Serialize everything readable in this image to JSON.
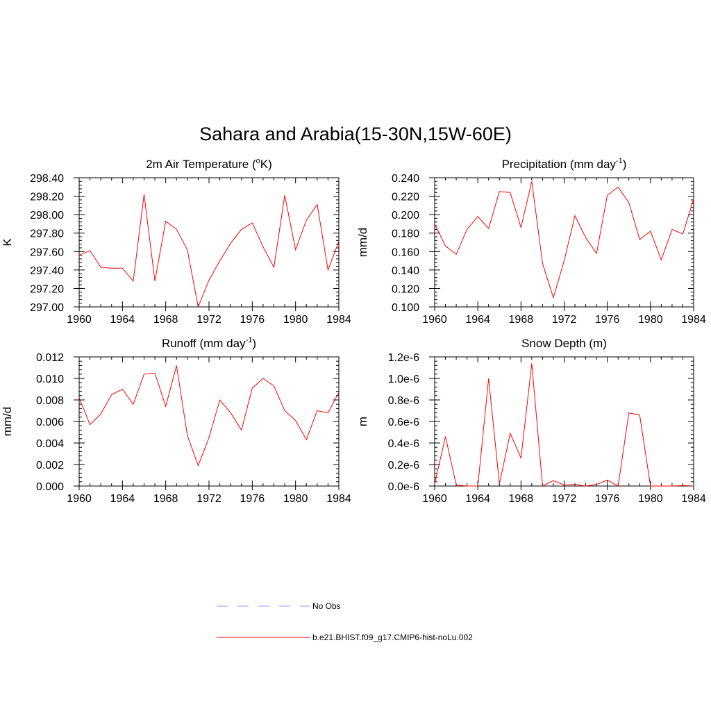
{
  "figure": {
    "title": "Sahara and Arabia(15-30N,15W-60E)"
  },
  "legend": {
    "entries": [
      {
        "label": "No Obs",
        "color": "#9999ff",
        "dash": true
      },
      {
        "label": "b.e21.BHIST.f09_g17.CMIP6-hist-noLu.002",
        "color": "#ff0000",
        "dash": false
      }
    ]
  },
  "colors": {
    "series": "#ff0000",
    "axis": "#000000"
  },
  "chart_data": [
    {
      "id": "temp",
      "type": "line",
      "title": "2m Air Temperature (",
      "title_sup": "o",
      "title_end": "K)",
      "ylabel": "K",
      "xlim": [
        1960,
        1984
      ],
      "ylim": [
        297.0,
        298.4
      ],
      "xticks": [
        1960,
        1964,
        1968,
        1972,
        1976,
        1980,
        1984
      ],
      "xtick_labels": [
        "1960",
        "1964",
        "1968",
        "1972",
        "1976",
        "1980",
        "1984"
      ],
      "yticks": [
        297.0,
        297.2,
        297.4,
        297.6,
        297.8,
        298.0,
        298.2,
        298.4
      ],
      "ytick_labels": [
        "297.00",
        "297.20",
        "297.40",
        "297.60",
        "297.80",
        "298.00",
        "298.20",
        "298.40"
      ],
      "x": [
        1960,
        1961,
        1962,
        1963,
        1964,
        1965,
        1966,
        1967,
        1968,
        1969,
        1970,
        1971,
        1972,
        1973,
        1974,
        1975,
        1976,
        1977,
        1978,
        1979,
        1980,
        1981,
        1982,
        1983,
        1984
      ],
      "series": [
        {
          "name": "b.e21.BHIST.f09_g17.CMIP6-hist-noLu.002",
          "values": [
            297.56,
            297.61,
            297.43,
            297.42,
            297.42,
            297.28,
            298.22,
            297.28,
            297.93,
            297.84,
            297.62,
            297.0,
            297.29,
            297.5,
            297.69,
            297.84,
            297.91,
            297.65,
            297.43,
            298.21,
            297.62,
            297.94,
            298.11,
            297.4,
            297.71
          ]
        }
      ]
    },
    {
      "id": "precip",
      "type": "line",
      "title": "Precipitation (mm day",
      "title_sup": "-1",
      "title_end": ")",
      "ylabel": "mm/d",
      "xlim": [
        1960,
        1984
      ],
      "ylim": [
        0.1,
        0.24
      ],
      "xticks": [
        1960,
        1964,
        1968,
        1972,
        1976,
        1980,
        1984
      ],
      "xtick_labels": [
        "1960",
        "1964",
        "1968",
        "1972",
        "1976",
        "1980",
        "1984"
      ],
      "yticks": [
        0.1,
        0.12,
        0.14,
        0.16,
        0.18,
        0.2,
        0.22,
        0.24
      ],
      "ytick_labels": [
        "0.100",
        "0.120",
        "0.140",
        "0.160",
        "0.180",
        "0.200",
        "0.220",
        "0.240"
      ],
      "x": [
        1960,
        1961,
        1962,
        1963,
        1964,
        1965,
        1966,
        1967,
        1968,
        1969,
        1970,
        1971,
        1972,
        1973,
        1974,
        1975,
        1976,
        1977,
        1978,
        1979,
        1980,
        1981,
        1982,
        1983,
        1984
      ],
      "series": [
        {
          "name": "b.e21.BHIST.f09_g17.CMIP6-hist-noLu.002",
          "values": [
            0.19,
            0.166,
            0.157,
            0.184,
            0.198,
            0.185,
            0.225,
            0.224,
            0.186,
            0.236,
            0.147,
            0.11,
            0.15,
            0.199,
            0.175,
            0.158,
            0.221,
            0.23,
            0.213,
            0.173,
            0.182,
            0.151,
            0.184,
            0.179,
            0.217
          ]
        }
      ]
    },
    {
      "id": "runoff",
      "type": "line",
      "title": "Runoff (mm day",
      "title_sup": "-1",
      "title_end": ")",
      "ylabel": "mm/d",
      "xlim": [
        1960,
        1984
      ],
      "ylim": [
        0.0,
        0.012
      ],
      "xticks": [
        1960,
        1964,
        1968,
        1972,
        1976,
        1980,
        1984
      ],
      "xtick_labels": [
        "1960",
        "1964",
        "1968",
        "1972",
        "1976",
        "1980",
        "1984"
      ],
      "yticks": [
        0.0,
        0.002,
        0.004,
        0.006,
        0.008,
        0.01,
        0.012
      ],
      "ytick_labels": [
        "0.000",
        "0.002",
        "0.004",
        "0.006",
        "0.008",
        "0.010",
        "0.012"
      ],
      "x": [
        1960,
        1961,
        1962,
        1963,
        1964,
        1965,
        1966,
        1967,
        1968,
        1969,
        1970,
        1971,
        1972,
        1973,
        1974,
        1975,
        1976,
        1977,
        1978,
        1979,
        1980,
        1981,
        1982,
        1983,
        1984
      ],
      "series": [
        {
          "name": "b.e21.BHIST.f09_g17.CMIP6-hist-noLu.002",
          "values": [
            0.0082,
            0.0057,
            0.0067,
            0.0085,
            0.009,
            0.0076,
            0.0104,
            0.0105,
            0.0074,
            0.0112,
            0.0047,
            0.0019,
            0.0045,
            0.008,
            0.0068,
            0.0052,
            0.0091,
            0.01,
            0.0093,
            0.007,
            0.0061,
            0.0043,
            0.007,
            0.0068,
            0.0087
          ]
        }
      ]
    },
    {
      "id": "snow",
      "type": "line",
      "title": "Snow Depth (m)",
      "title_sup": "",
      "title_end": "",
      "ylabel": "m",
      "xlim": [
        1960,
        1984
      ],
      "ylim": [
        0.0,
        1.2e-06
      ],
      "xticks": [
        1960,
        1964,
        1968,
        1972,
        1976,
        1980,
        1984
      ],
      "xtick_labels": [
        "1960",
        "1964",
        "1968",
        "1972",
        "1976",
        "1980",
        "1984"
      ],
      "yticks": [
        0.0,
        2e-07,
        4e-07,
        6e-07,
        8e-07,
        1e-06,
        1.2e-06
      ],
      "ytick_labels": [
        "0.0e-6",
        "0.2e-6",
        "0.4e-6",
        "0.6e-6",
        "0.8e-6",
        "1.0e-6",
        "1.2e-6"
      ],
      "x": [
        1960,
        1961,
        1962,
        1963,
        1964,
        1965,
        1966,
        1967,
        1968,
        1969,
        1970,
        1971,
        1972,
        1973,
        1974,
        1975,
        1976,
        1977,
        1978,
        1979,
        1980,
        1981,
        1982,
        1983,
        1984
      ],
      "series": [
        {
          "name": "b.e21.BHIST.f09_g17.CMIP6-hist-noLu.002",
          "values": [
            2e-08,
            4.6e-07,
            1e-08,
            0.0,
            0.0,
            1e-06,
            2e-08,
            4.9e-07,
            2.6e-07,
            1.14e-06,
            0.0,
            5e-08,
            1e-08,
            1.5e-08,
            0.0,
            1.5e-08,
            5.5e-08,
            0.0,
            6.8e-07,
            6.6e-07,
            0.0,
            0.0,
            0.0,
            5e-09,
            0.0
          ]
        }
      ]
    }
  ]
}
